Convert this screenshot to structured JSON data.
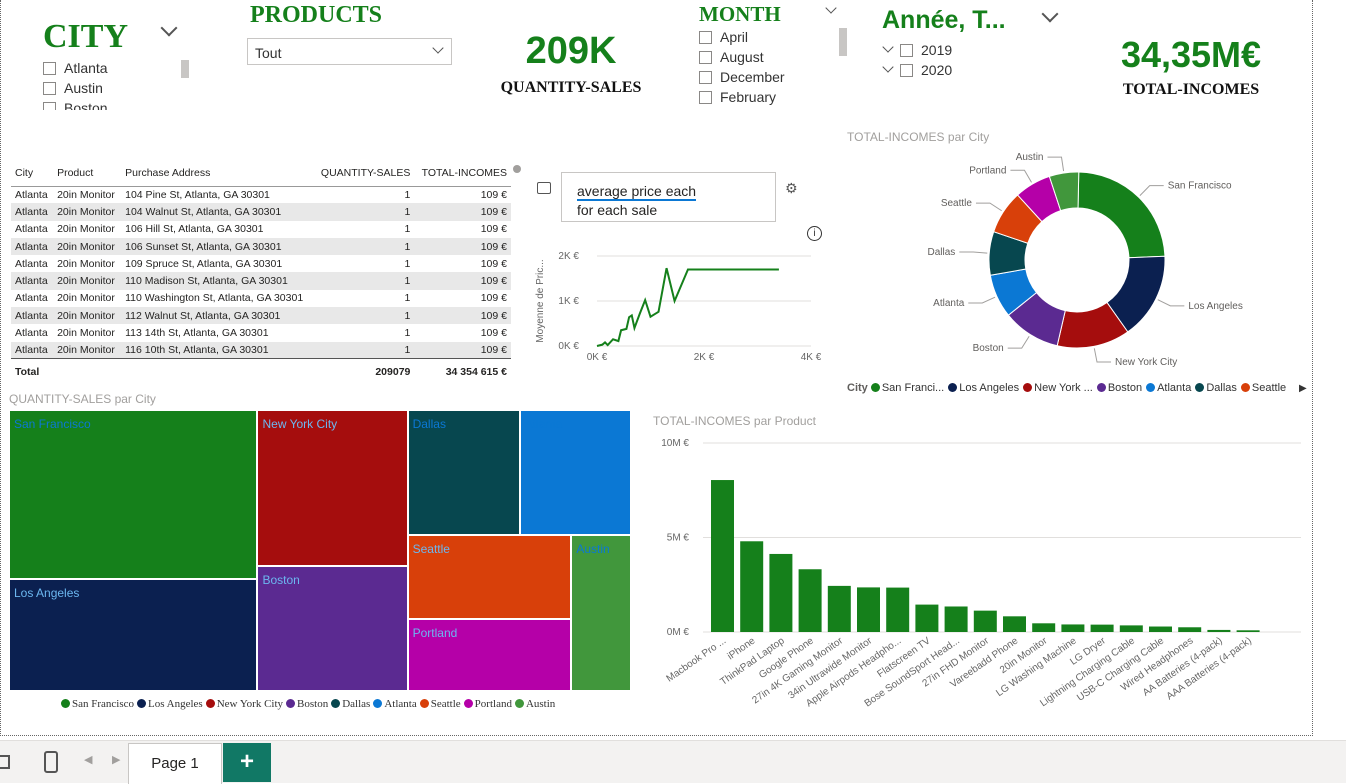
{
  "city_slicer": {
    "title": "CITY",
    "items": [
      "Atlanta",
      "Austin",
      "Boston"
    ]
  },
  "products_slicer": {
    "title": "PRODUCTS",
    "selected": "Tout"
  },
  "kpi_quantity": {
    "value": "209K",
    "label": "QUANTITY-SALES"
  },
  "month_slicer": {
    "title": "MONTH",
    "items": [
      "April",
      "August",
      "December",
      "February"
    ]
  },
  "year_slicer": {
    "title": "Année, T...",
    "items": [
      "2019",
      "2020"
    ]
  },
  "kpi_incomes": {
    "value": "34,35M€",
    "label": "TOTAL-INCOMES"
  },
  "table": {
    "headers": [
      "City",
      "Product",
      "Purchase Address",
      "QUANTITY-SALES",
      "TOTAL-INCOMES"
    ],
    "rows": [
      [
        "Atlanta",
        "20in Monitor",
        "104 Pine St, Atlanta, GA 30301",
        "1",
        "109 €"
      ],
      [
        "Atlanta",
        "20in Monitor",
        "104 Walnut St, Atlanta, GA 30301",
        "1",
        "109 €"
      ],
      [
        "Atlanta",
        "20in Monitor",
        "106 Hill St, Atlanta, GA 30301",
        "1",
        "109 €"
      ],
      [
        "Atlanta",
        "20in Monitor",
        "106 Sunset St, Atlanta, GA 30301",
        "1",
        "109 €"
      ],
      [
        "Atlanta",
        "20in Monitor",
        "109 Spruce St, Atlanta, GA 30301",
        "1",
        "109 €"
      ],
      [
        "Atlanta",
        "20in Monitor",
        "110 Madison St, Atlanta, GA 30301",
        "1",
        "109 €"
      ],
      [
        "Atlanta",
        "20in Monitor",
        "110 Washington St, Atlanta, GA 30301",
        "1",
        "109 €"
      ],
      [
        "Atlanta",
        "20in Monitor",
        "112 Walnut St, Atlanta, GA 30301",
        "1",
        "109 €"
      ],
      [
        "Atlanta",
        "20in Monitor",
        "113 14th St, Atlanta, GA 30301",
        "1",
        "109 €"
      ],
      [
        "Atlanta",
        "20in Monitor",
        "116 10th St, Atlanta, GA 30301",
        "1",
        "109 €"
      ]
    ],
    "total": [
      "Total",
      "209079",
      "34 354 615 €"
    ]
  },
  "qa_visual": {
    "query_line1": "average price each",
    "query_line2": "for each sale"
  },
  "colors": {
    "green": "#15801b",
    "navy": "#0b2050",
    "red": "#a50d0d",
    "purple": "#5b2a91",
    "teal": "#07474f",
    "blue": "#0b78d4",
    "orange": "#d8400a",
    "magenta": "#b500a8",
    "lightgreen": "#41973c"
  },
  "chart_data": [
    {
      "type": "line",
      "title": "",
      "xlabel": "",
      "ylabel": "Moyenne de Pric...",
      "x_ticks": [
        "0K €",
        "2K €",
        "4K €"
      ],
      "y_ticks": [
        "0K €",
        "1K €",
        "2K €"
      ],
      "xlim": [
        0,
        4000
      ],
      "ylim": [
        0,
        2000
      ],
      "series": [
        {
          "x": [
            0,
            100,
            150,
            200,
            300,
            400,
            450,
            550,
            600,
            650,
            700,
            800,
            900,
            1000,
            1150,
            1300,
            1450,
            1700,
            3400
          ],
          "y": [
            0,
            30,
            80,
            20,
            150,
            110,
            350,
            380,
            640,
            680,
            400,
            720,
            1020,
            650,
            760,
            1730,
            1000,
            1700,
            1700
          ]
        }
      ]
    },
    {
      "type": "pie",
      "title": "TOTAL-INCOMES par City",
      "legend_title": "City",
      "legend_entries": [
        "San Franci...",
        "Los Angeles",
        "New York ...",
        "Boston",
        "Atlanta",
        "Dallas",
        "Seattle"
      ],
      "slices": [
        {
          "label": "San Francisco",
          "value": 24.0
        },
        {
          "label": "Los Angeles",
          "value": 15.9
        },
        {
          "label": "New York City",
          "value": 13.4
        },
        {
          "label": "Boston",
          "value": 10.6
        },
        {
          "label": "Atlanta",
          "value": 8.0
        },
        {
          "label": "Dallas",
          "value": 8.0
        },
        {
          "label": "Seattle",
          "value": 8.0
        },
        {
          "label": "Portland",
          "value": 6.7
        },
        {
          "label": "Austin",
          "value": 5.4
        }
      ]
    },
    {
      "type": "treemap",
      "title": "QUANTITY-SALES par City",
      "items": [
        {
          "label": "San Francisco",
          "value": 50239
        },
        {
          "label": "Los Angeles",
          "value": 33289
        },
        {
          "label": "New York City",
          "value": 27932
        },
        {
          "label": "Boston",
          "value": 22528
        },
        {
          "label": "Dallas",
          "value": 16730
        },
        {
          "label": "Atlanta",
          "value": 16602
        },
        {
          "label": "Seattle",
          "value": 16553
        },
        {
          "label": "Portland",
          "value": 14053
        },
        {
          "label": "Austin",
          "value": 11153
        }
      ],
      "legend_entries": [
        "San Francisco",
        "Los Angeles",
        "New York City",
        "Boston",
        "Dallas",
        "Atlanta",
        "Seattle",
        "Portland",
        "Austin"
      ]
    },
    {
      "type": "bar",
      "title": "TOTAL-INCOMES par Product",
      "y_ticks": [
        "10M €",
        "5M €",
        "0M €"
      ],
      "ylim": [
        0,
        10000000
      ],
      "categories": [
        "Macbook Pro ...",
        "iPhone",
        "ThinkPad Laptop",
        "Google Phone",
        "27in 4K Gaming Monitor",
        "34in Ultrawide Monitor",
        "Apple Airpods Headpho...",
        "Flatscreen TV",
        "Bose SoundSport Head...",
        "27in FHD Monitor",
        "Vareebadd Phone",
        "20in Monitor",
        "LG Washing Machine",
        "LG Dryer",
        "Lightning Charging Cable",
        "USB-C Charging Cable",
        "Wired Headphones",
        "AA Batteries (4-pack)",
        "AAA Batteries (4-pack)"
      ],
      "values": [
        8040000,
        4800000,
        4130000,
        3320000,
        2440000,
        2360000,
        2350000,
        1450000,
        1350000,
        1130000,
        830000,
        460000,
        400000,
        390000,
        350000,
        290000,
        250000,
        110000,
        90000
      ]
    }
  ],
  "page_tabs": {
    "page1": "Page 1",
    "add": "+"
  }
}
